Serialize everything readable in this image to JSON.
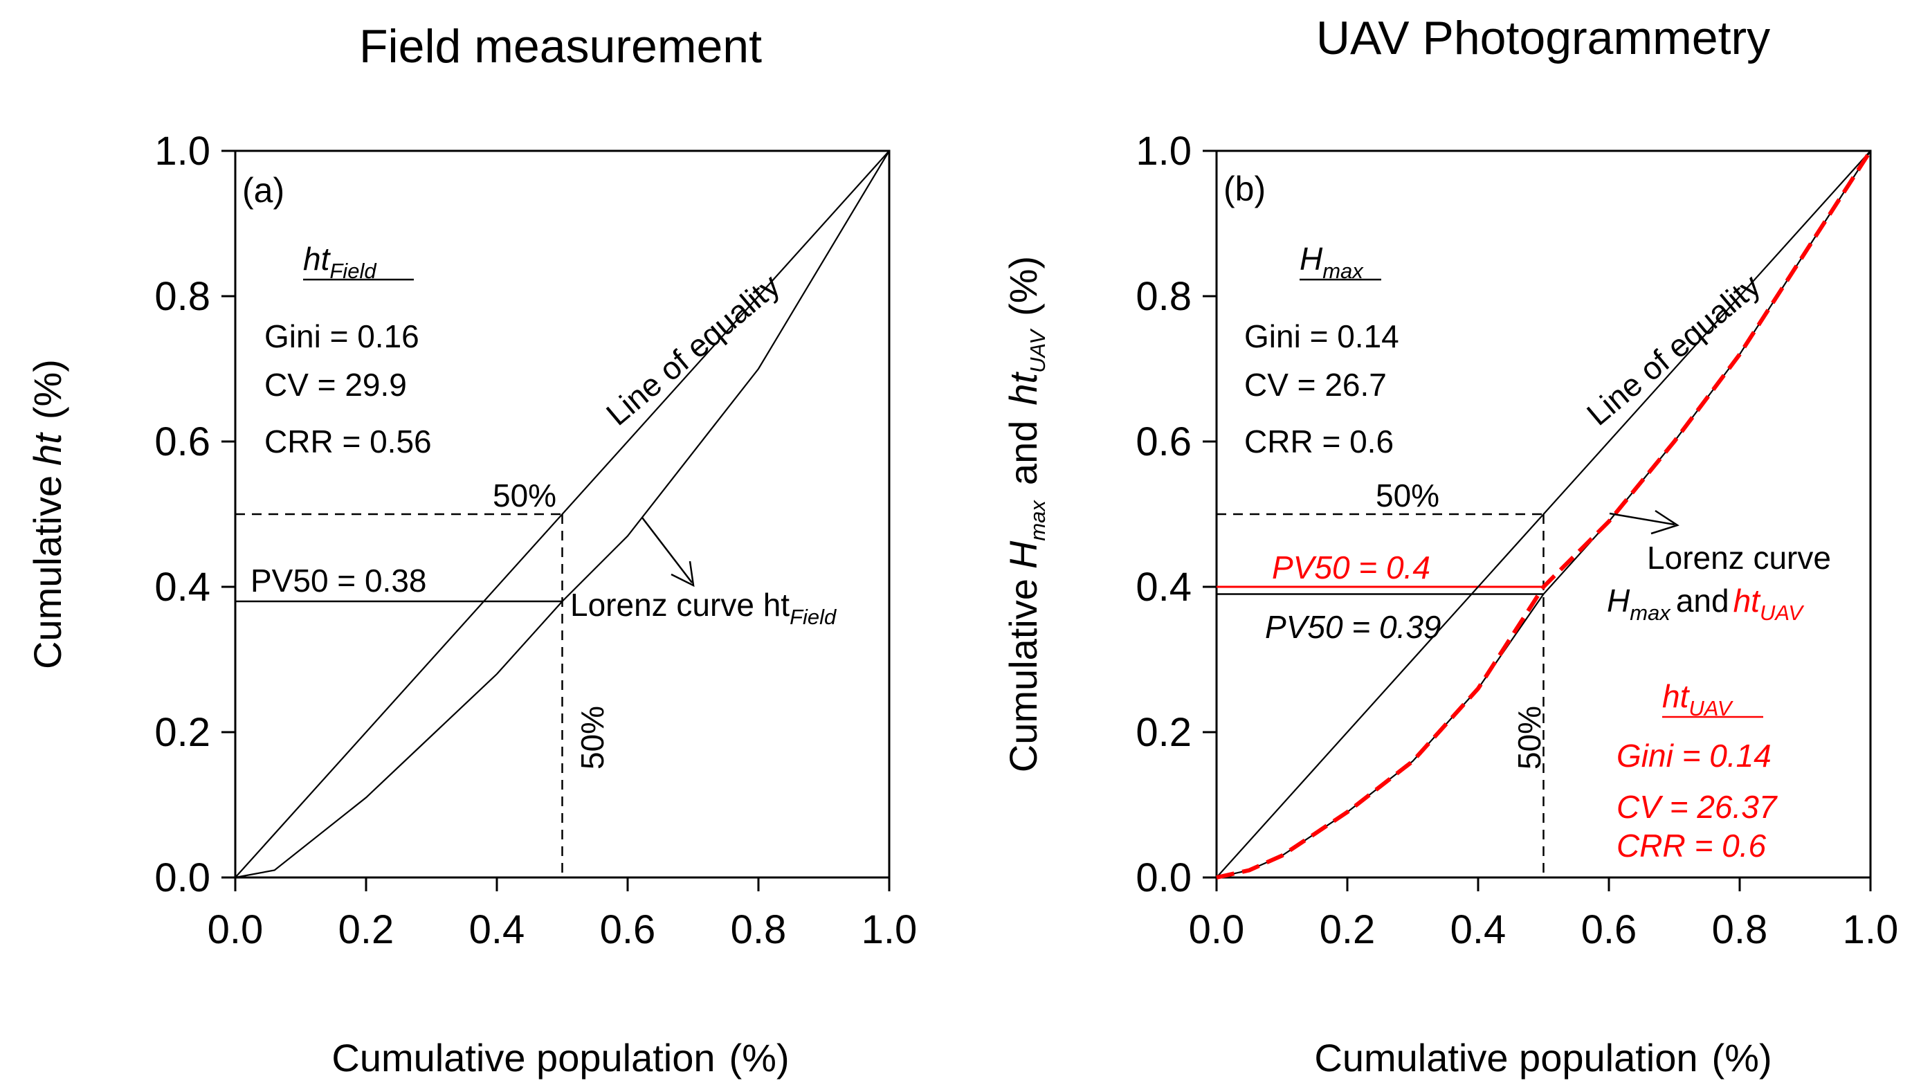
{
  "colors": {
    "ink": "#000000",
    "accent": "#ff0000"
  },
  "chart_data": [
    {
      "type": "line",
      "panel_label": "(a)",
      "title": "Field measurement",
      "xlabel": "Cumulative population",
      "xlabel_unit": "(%)",
      "ylabel_prefix": "Cumulative",
      "ylabel_var": "ht",
      "ylabel_unit": "(%)",
      "xlim": [
        0,
        1
      ],
      "ylim": [
        0,
        1
      ],
      "xticks": [
        "0.0",
        "0.2",
        "0.4",
        "0.6",
        "0.8",
        "1.0"
      ],
      "yticks": [
        "0.0",
        "0.2",
        "0.4",
        "0.6",
        "0.8",
        "1.0"
      ],
      "series": [
        {
          "name": "Line of equality",
          "x": [
            0,
            1
          ],
          "y": [
            0,
            1
          ]
        },
        {
          "name": "Lorenz curve ht Field",
          "x": [
            0,
            0.06,
            0.2,
            0.4,
            0.5,
            0.6,
            0.8,
            1.0
          ],
          "y": [
            0,
            0.01,
            0.11,
            0.28,
            0.38,
            0.47,
            0.7,
            1.0
          ]
        }
      ],
      "stats": {
        "heading": "ht",
        "heading_sub": "Field",
        "gini": "Gini = 0.16",
        "cv": "CV = 29.9",
        "crr": "CRR = 0.56"
      },
      "reference": {
        "x": 0.5,
        "y": 0.5,
        "pv50": 0.38,
        "pv50_label": "PV50 = 0.38",
        "label_h": "50%",
        "label_v": "50%"
      },
      "annotations": {
        "equality": "Line of equality",
        "lorenz_main": "Lorenz curve ht",
        "lorenz_sub": "Field"
      }
    },
    {
      "type": "line",
      "panel_label": "(b)",
      "title": "UAV Photogrammetry",
      "xlabel": "Cumulative population",
      "xlabel_unit": "(%)",
      "ylabel_prefix": "Cumulative",
      "ylabel_var1": "H",
      "ylabel_var1_sub": "max",
      "ylabel_and": "and",
      "ylabel_var2": "ht",
      "ylabel_var2_sub": "UAV",
      "ylabel_unit": "(%)",
      "xlim": [
        0,
        1
      ],
      "ylim": [
        0,
        1
      ],
      "xticks": [
        "0.0",
        "0.2",
        "0.4",
        "0.6",
        "0.8",
        "1.0"
      ],
      "yticks": [
        "0.0",
        "0.2",
        "0.4",
        "0.6",
        "0.8",
        "1.0"
      ],
      "series": [
        {
          "name": "Line of equality",
          "x": [
            0,
            1
          ],
          "y": [
            0,
            1
          ]
        },
        {
          "name": "Lorenz curve Hmax",
          "x": [
            0,
            0.05,
            0.1,
            0.2,
            0.3,
            0.4,
            0.5,
            0.6,
            0.7,
            0.8,
            0.9,
            1.0
          ],
          "y": [
            0,
            0.01,
            0.03,
            0.09,
            0.16,
            0.26,
            0.39,
            0.49,
            0.6,
            0.72,
            0.86,
            1.0
          ]
        },
        {
          "name": "Lorenz curve ht UAV",
          "style": "dashed-red",
          "x": [
            0,
            0.05,
            0.1,
            0.2,
            0.3,
            0.4,
            0.5,
            0.6,
            0.7,
            0.8,
            0.9,
            1.0
          ],
          "y": [
            0,
            0.01,
            0.03,
            0.09,
            0.16,
            0.26,
            0.4,
            0.49,
            0.6,
            0.72,
            0.86,
            1.0
          ]
        }
      ],
      "stats_hmax": {
        "heading": "H",
        "heading_sub": "max",
        "gini": "Gini = 0.14",
        "cv": "CV = 26.7",
        "crr": "CRR = 0.6"
      },
      "stats_uav": {
        "heading": "ht",
        "heading_sub": "UAV",
        "gini": "Gini = 0.14",
        "cv": "CV = 26.37",
        "crr": "CRR = 0.6"
      },
      "reference": {
        "x": 0.5,
        "y": 0.5,
        "pv50_uav": 0.4,
        "pv50_uav_label": "PV50 = 0.4",
        "pv50_hmax": 0.39,
        "pv50_hmax_label": "PV50 = 0.39",
        "label_h": "50%",
        "label_v": "50%"
      },
      "annotations": {
        "equality": "Line of equality",
        "lorenz_line1": "Lorenz curve",
        "lorenz_var1": "H",
        "lorenz_var1_sub": "max",
        "lorenz_and": "and",
        "lorenz_var2": "ht",
        "lorenz_var2_sub": "UAV"
      }
    }
  ]
}
